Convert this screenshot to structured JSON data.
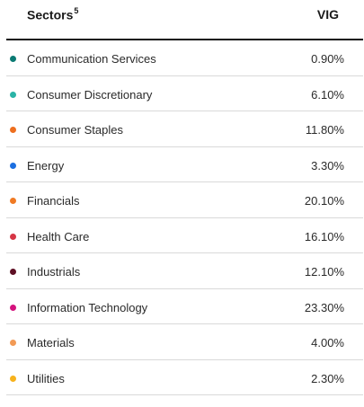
{
  "header": {
    "sectors_label": "Sectors",
    "sectors_footnote": "5",
    "fund_label": "VIG"
  },
  "rows": [
    {
      "name": "Communication Services",
      "value": "0.90%",
      "color": "#0a7a73"
    },
    {
      "name": "Consumer Discretionary",
      "value": "6.10%",
      "color": "#2ab3a6"
    },
    {
      "name": "Consumer Staples",
      "value": "11.80%",
      "color": "#ee6f1f"
    },
    {
      "name": "Energy",
      "value": "3.30%",
      "color": "#1c6fe0"
    },
    {
      "name": "Financials",
      "value": "20.10%",
      "color": "#f07a24"
    },
    {
      "name": "Health Care",
      "value": "16.10%",
      "color": "#d63545"
    },
    {
      "name": "Industrials",
      "value": "12.10%",
      "color": "#5e0f24"
    },
    {
      "name": "Information Technology",
      "value": "23.30%",
      "color": "#d4127d"
    },
    {
      "name": "Materials",
      "value": "4.00%",
      "color": "#f29a55"
    },
    {
      "name": "Utilities",
      "value": "2.30%",
      "color": "#f7b21c"
    }
  ]
}
